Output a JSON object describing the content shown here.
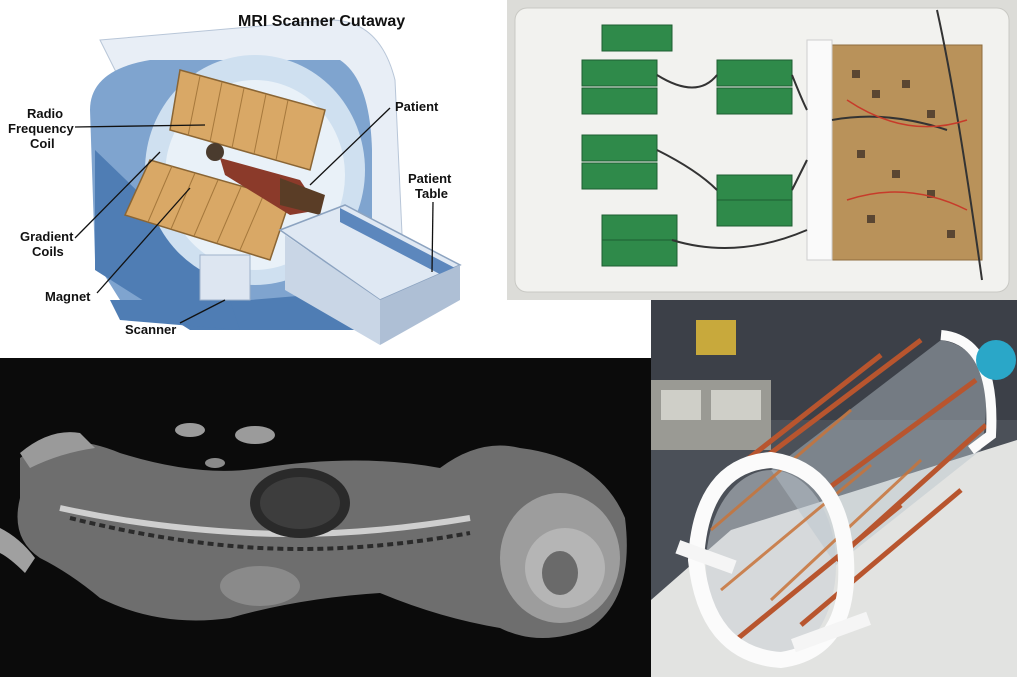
{
  "diagram": {
    "title": "MRI Scanner Cutaway",
    "labels": {
      "rf_coil_line1": "Radio",
      "rf_coil_line2": "Frequency",
      "rf_coil_line3": "Coil",
      "patient": "Patient",
      "table_line1": "Patient",
      "table_line2": "Table",
      "gradient_line1": "Gradient",
      "gradient_line2": "Coils",
      "magnet": "Magnet",
      "scanner": "Scanner"
    }
  },
  "colors": {
    "scanner_blue": "#7fa4cf",
    "scanner_dark_blue": "#4f7db4",
    "coil_tan": "#d9a866",
    "board_green": "#2f8a4a",
    "copper": "#c8743a"
  },
  "icons": {
    "circuit_board": "circuit-board-photo",
    "mri_scan": "mri-scan-photo",
    "rf_coil": "birdcage-coil-photo"
  }
}
